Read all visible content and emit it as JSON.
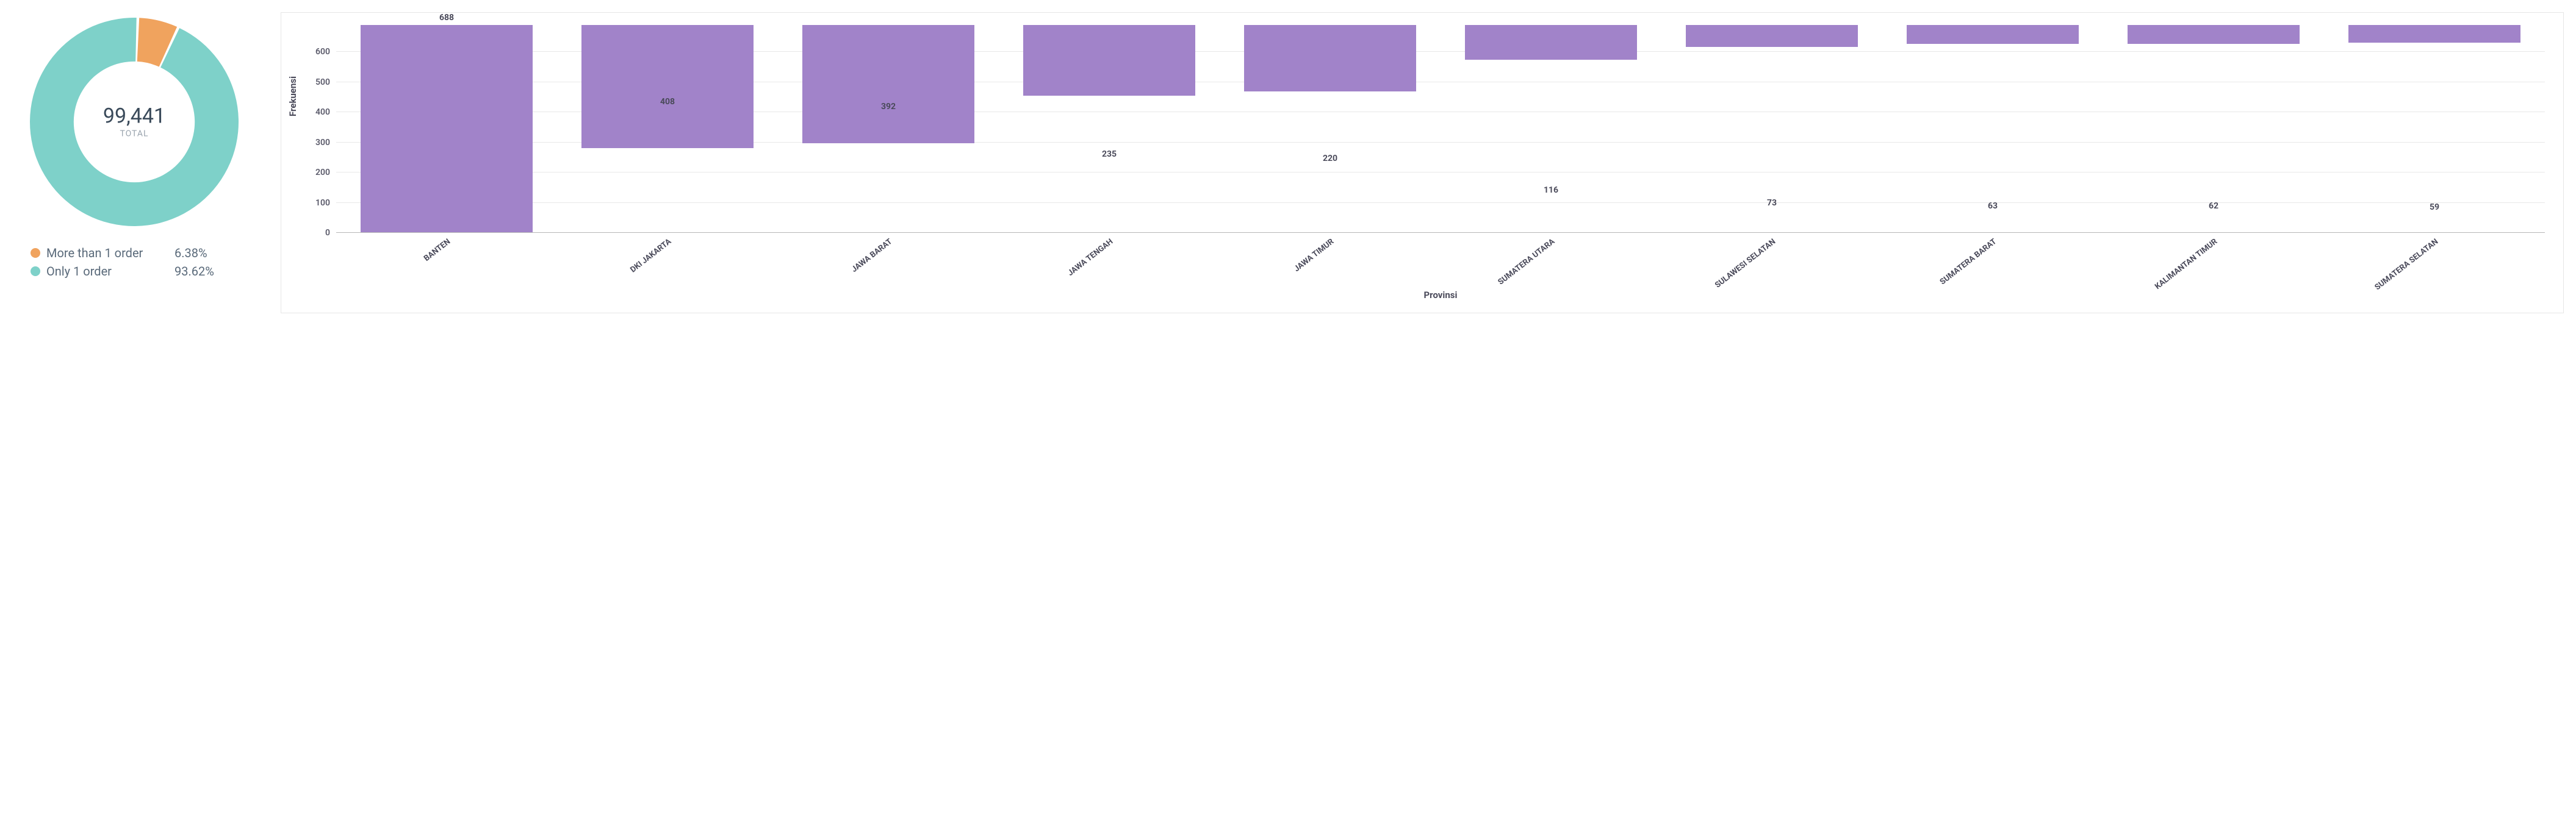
{
  "donut": {
    "total_value": "99,441",
    "total_label": "TOTAL",
    "total_color": "#3a4a5a",
    "total_label_color": "#9aa4ae",
    "slices": [
      {
        "label": "More than 1 order",
        "pct": 6.38,
        "pct_label": "6.38%",
        "color": "#f0a35e"
      },
      {
        "label": "Only 1 order",
        "pct": 93.62,
        "pct_label": "93.62%",
        "color": "#7ed1c9"
      }
    ],
    "inner_radius_ratio": 0.58,
    "gap_deg": 1.5,
    "start_angle_deg": 2,
    "background_color": "#ffffff"
  },
  "bar_chart": {
    "type": "bar",
    "x_label": "Provinsi",
    "y_label": "Frekuensi",
    "categories": [
      "BANTEN",
      "DKI JAKARTA",
      "JAWA BARAT",
      "JAWA TENGAH",
      "JAWA TIMUR",
      "SUMATERA UTARA",
      "SULAWESI SELATAN",
      "SUMATERA BARAT",
      "KALIMANTAN TIMUR",
      "SUMATERA SELATAN"
    ],
    "values": [
      688,
      408,
      392,
      235,
      220,
      116,
      73,
      63,
      62,
      59
    ],
    "bar_color": "#a183c9",
    "ylim": [
      0,
      688
    ],
    "yticks": [
      0,
      100,
      200,
      300,
      400,
      500,
      600
    ],
    "grid_color": "#e8e8e8",
    "baseline_color": "#b8b8b8",
    "border_color": "#e6e6e6",
    "axis_text_color": "#4a4a5a",
    "tick_text_color": "#5a5a6a",
    "value_label_color": "#4a4a5a",
    "bar_width_ratio": 0.78,
    "x_label_rotate_deg": -38,
    "tick_fontsize": 14,
    "label_fontsize": 15,
    "value_fontsize": 14,
    "category_fontsize": 13
  }
}
